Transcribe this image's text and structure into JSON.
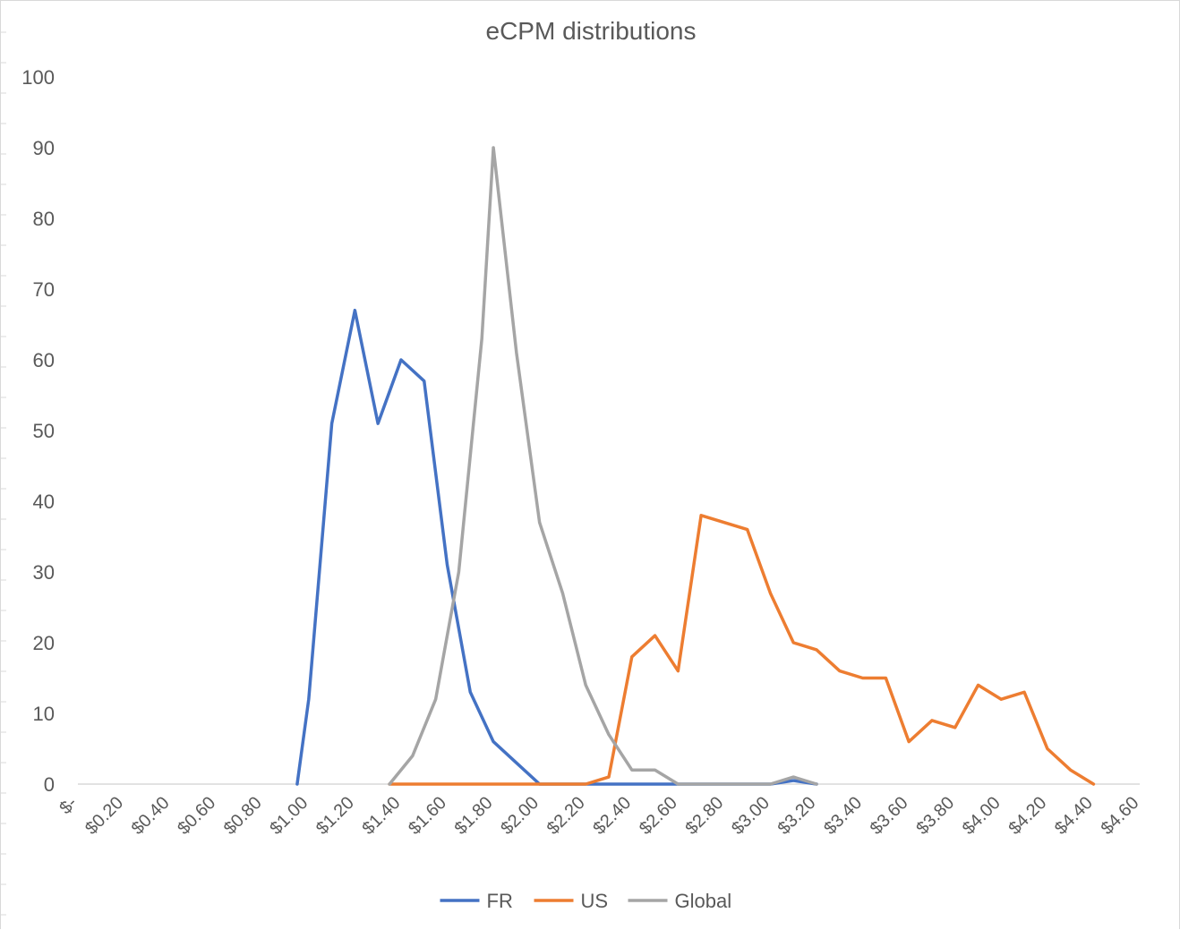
{
  "chart_data": {
    "type": "line",
    "title": "eCPM distributions",
    "xlabel": "",
    "ylabel": "",
    "x_tick_labels": [
      "$-",
      "$0.20",
      "$0.40",
      "$0.60",
      "$0.80",
      "$1.00",
      "$1.20",
      "$1.40",
      "$1.60",
      "$1.80",
      "$2.00",
      "$2.20",
      "$2.40",
      "$2.60",
      "$2.80",
      "$3.00",
      "$3.20",
      "$3.40",
      "$3.60",
      "$3.80",
      "$4.00",
      "$4.20",
      "$4.40",
      "$4.60"
    ],
    "y_tick_labels": [
      "0",
      "10",
      "20",
      "30",
      "40",
      "50",
      "60",
      "70",
      "80",
      "90",
      "100"
    ],
    "ylim": [
      0,
      100
    ],
    "xlim": [
      0,
      4.6
    ],
    "grid": false,
    "legend_position": "bottom",
    "series": [
      {
        "name": "FR",
        "color": "#4472c4",
        "points": [
          [
            0.95,
            0
          ],
          [
            1.0,
            12
          ],
          [
            1.1,
            51
          ],
          [
            1.2,
            67
          ],
          [
            1.3,
            51
          ],
          [
            1.4,
            60
          ],
          [
            1.5,
            57
          ],
          [
            1.6,
            31
          ],
          [
            1.7,
            13
          ],
          [
            1.8,
            6
          ],
          [
            1.9,
            3
          ],
          [
            2.0,
            0
          ],
          [
            2.1,
            0
          ],
          [
            2.2,
            0
          ],
          [
            2.3,
            0
          ],
          [
            2.4,
            0
          ],
          [
            2.5,
            0
          ],
          [
            2.6,
            0
          ],
          [
            2.7,
            0
          ],
          [
            2.8,
            0
          ],
          [
            2.9,
            0
          ],
          [
            3.0,
            0
          ],
          [
            3.1,
            0.5
          ],
          [
            3.2,
            0
          ]
        ]
      },
      {
        "name": "US",
        "color": "#ed7d31",
        "points": [
          [
            1.35,
            0
          ],
          [
            1.4,
            0
          ],
          [
            1.5,
            0
          ],
          [
            1.6,
            0
          ],
          [
            1.7,
            0
          ],
          [
            1.8,
            0
          ],
          [
            1.9,
            0
          ],
          [
            2.0,
            0
          ],
          [
            2.1,
            0
          ],
          [
            2.2,
            0
          ],
          [
            2.3,
            1
          ],
          [
            2.4,
            18
          ],
          [
            2.5,
            21
          ],
          [
            2.6,
            16
          ],
          [
            2.7,
            38
          ],
          [
            2.8,
            37
          ],
          [
            2.9,
            36
          ],
          [
            3.0,
            27
          ],
          [
            3.1,
            20
          ],
          [
            3.2,
            19
          ],
          [
            3.3,
            16
          ],
          [
            3.4,
            15
          ],
          [
            3.5,
            15
          ],
          [
            3.6,
            6
          ],
          [
            3.7,
            9
          ],
          [
            3.8,
            8
          ],
          [
            3.9,
            14
          ],
          [
            4.0,
            12
          ],
          [
            4.1,
            13
          ],
          [
            4.2,
            5
          ],
          [
            4.3,
            2
          ],
          [
            4.4,
            0
          ]
        ]
      },
      {
        "name": "Global",
        "color": "#a5a5a5",
        "points": [
          [
            1.35,
            0
          ],
          [
            1.45,
            4
          ],
          [
            1.55,
            12
          ],
          [
            1.65,
            30
          ],
          [
            1.75,
            63
          ],
          [
            1.8,
            90
          ],
          [
            1.9,
            61
          ],
          [
            2.0,
            37
          ],
          [
            2.1,
            27
          ],
          [
            2.2,
            14
          ],
          [
            2.3,
            7
          ],
          [
            2.4,
            2
          ],
          [
            2.5,
            2
          ],
          [
            2.6,
            0
          ],
          [
            2.7,
            0
          ],
          [
            2.8,
            0
          ],
          [
            2.9,
            0
          ],
          [
            3.0,
            0
          ],
          [
            3.1,
            1
          ],
          [
            3.2,
            0
          ]
        ]
      }
    ]
  }
}
